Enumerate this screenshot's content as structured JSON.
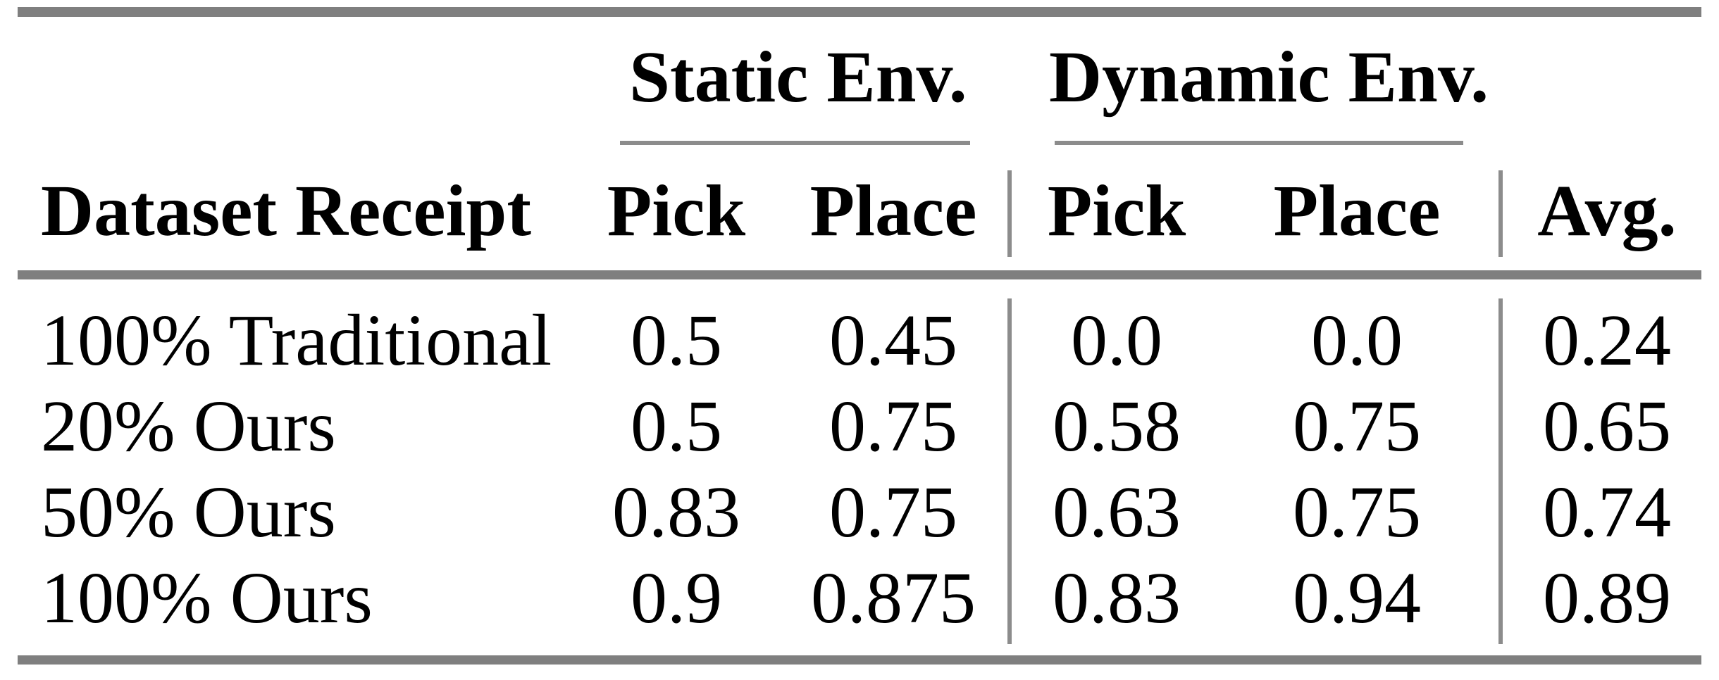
{
  "table": {
    "group_headers": [
      {
        "label": "Static Env."
      },
      {
        "label": "Dynamic Env."
      }
    ],
    "columns": [
      {
        "label": "Dataset Receipt"
      },
      {
        "label": "Pick"
      },
      {
        "label": "Place"
      },
      {
        "label": "Pick"
      },
      {
        "label": "Place"
      },
      {
        "label": "Avg."
      }
    ],
    "rows": [
      {
        "label": "100% Traditional",
        "cells": [
          "0.5",
          "0.45",
          "0.0",
          "0.0",
          "0.24"
        ]
      },
      {
        "label": "20% Ours",
        "cells": [
          "0.5",
          "0.75",
          "0.58",
          "0.75",
          "0.65"
        ]
      },
      {
        "label": "50% Ours",
        "cells": [
          "0.83",
          "0.75",
          "0.63",
          "0.75",
          "0.74"
        ]
      },
      {
        "label": "100% Ours",
        "cells": [
          "0.9",
          "0.875",
          "0.83",
          "0.94",
          "0.89"
        ]
      }
    ]
  },
  "colors": {
    "rule_gray": "#7f7f7f",
    "separator_gray": "#8c8c8c",
    "text": "#000000",
    "background": "#ffffff"
  }
}
